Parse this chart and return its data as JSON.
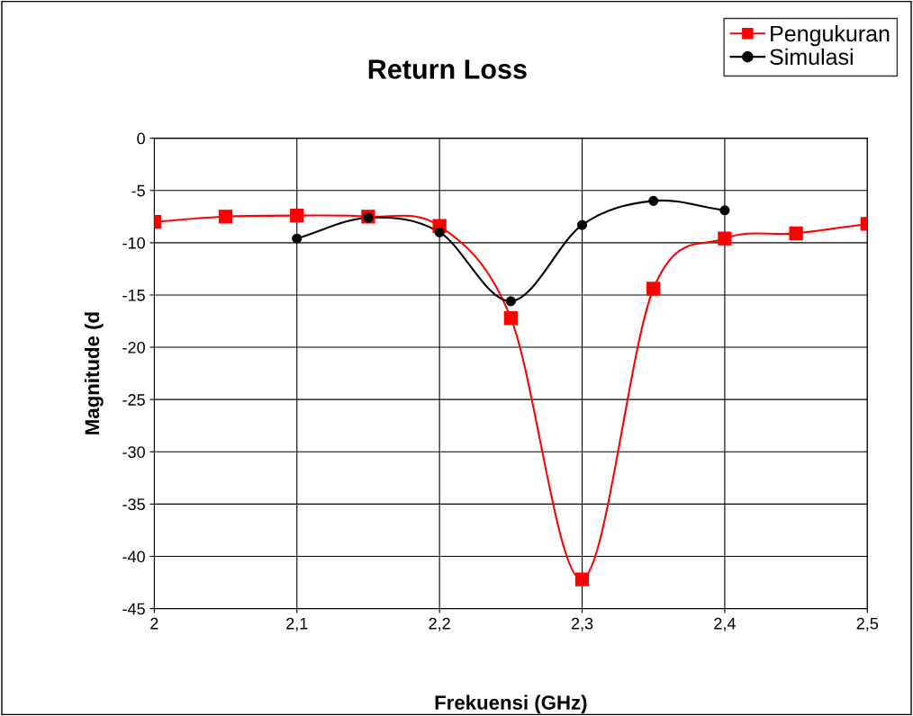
{
  "chart_data": {
    "type": "line",
    "title": "Return Loss",
    "xlabel": "Frekuensi (GHz)",
    "ylabel": "Magnitude (d",
    "series": [
      {
        "name": "Pengukuran",
        "color": "#ff0000",
        "marker": "square",
        "x": [
          2.0,
          2.05,
          2.1,
          2.15,
          2.2,
          2.25,
          2.3,
          2.35,
          2.4,
          2.45,
          2.5
        ],
        "values": [
          -8.0,
          -7.5,
          -7.4,
          -7.5,
          -8.4,
          -17.2,
          -42.2,
          -14.4,
          -9.6,
          -9.1,
          -8.2
        ]
      },
      {
        "name": "Simulasi",
        "color": "#000000",
        "marker": "circle",
        "x": [
          2.1,
          2.15,
          2.2,
          2.25,
          2.3,
          2.35,
          2.4
        ],
        "values": [
          -9.6,
          -7.6,
          -9.0,
          -15.6,
          -8.3,
          -6.0,
          -6.9
        ]
      }
    ],
    "xlim": [
      2.0,
      2.5
    ],
    "xticks": [
      2,
      {
        "value": 2.1,
        "label": "2,1"
      },
      {
        "value": 2.2,
        "label": "2,2"
      },
      {
        "value": 2.3,
        "label": "2,3"
      },
      {
        "value": 2.4,
        "label": "2,4"
      },
      {
        "value": 2.5,
        "label": "2,5"
      }
    ],
    "ylim": [
      -45,
      0
    ],
    "yticks": [
      0,
      -5,
      -10,
      -15,
      -20,
      -25,
      -30,
      -35,
      -40,
      -45
    ],
    "grid": true,
    "legend": "top right",
    "line_style": "solid"
  }
}
